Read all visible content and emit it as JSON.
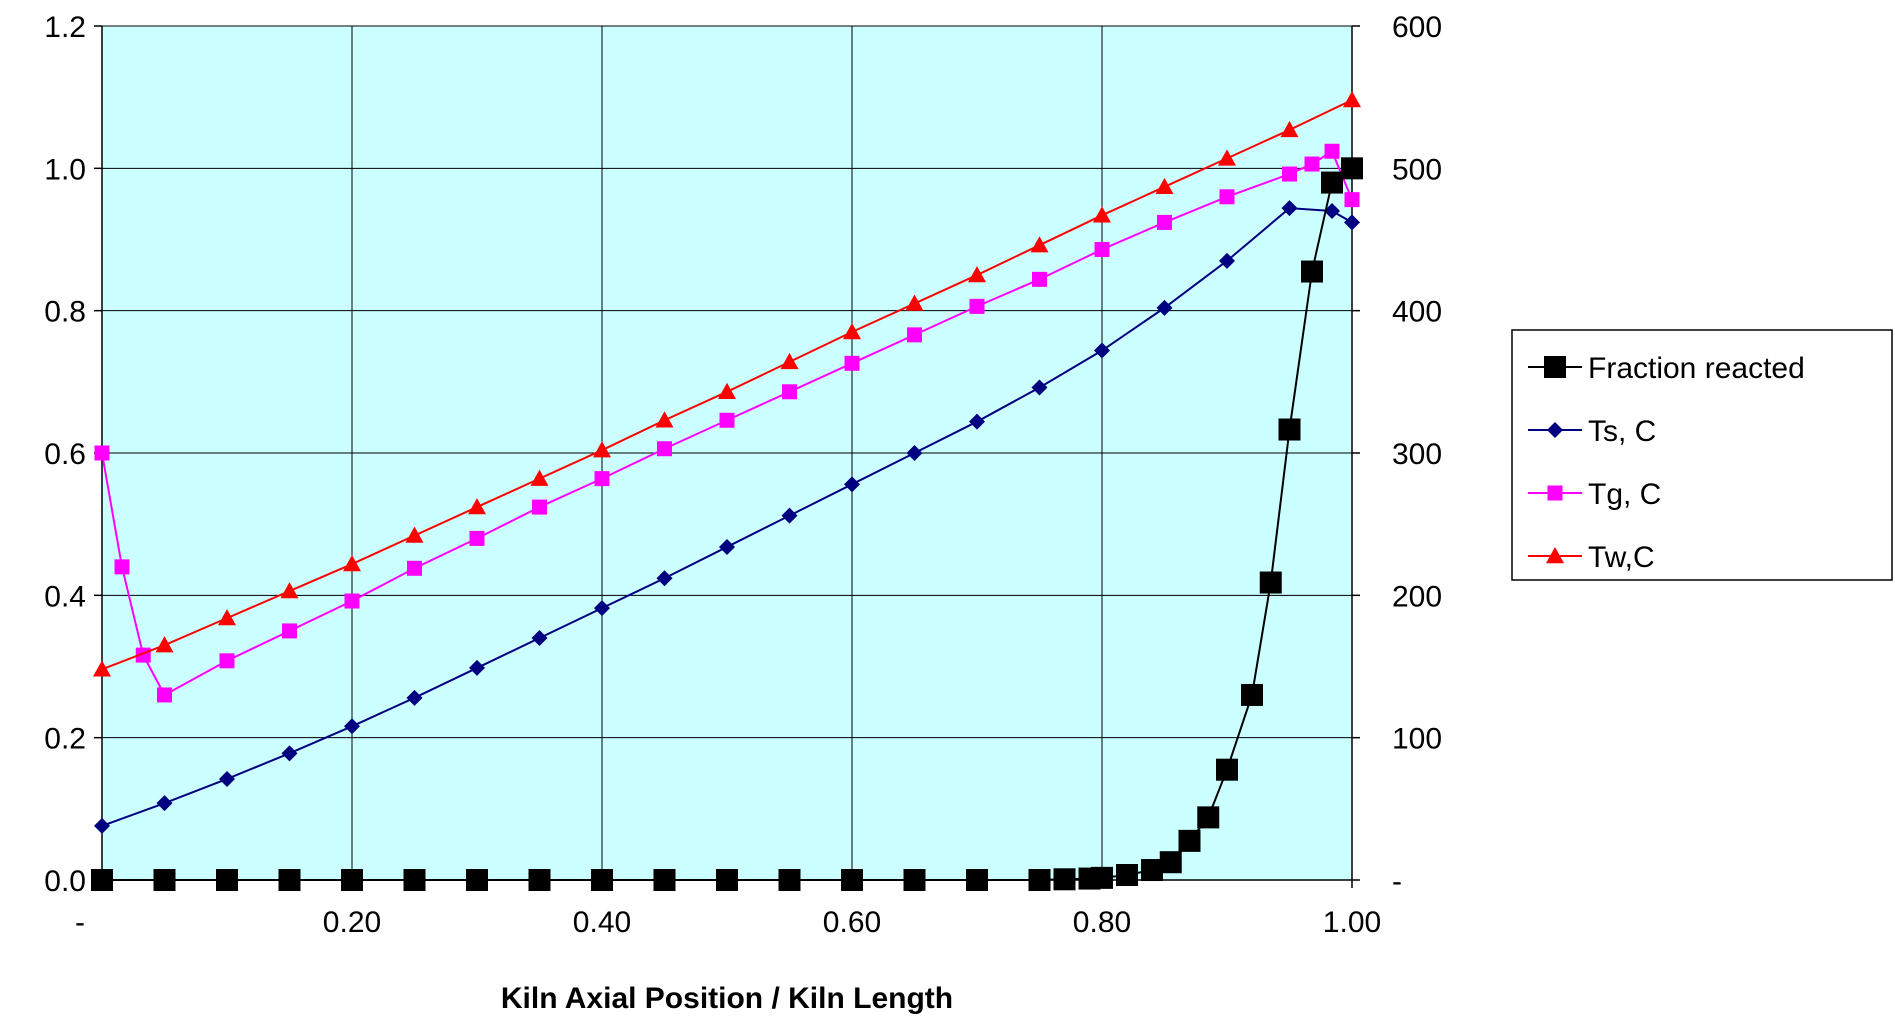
{
  "chart_data": {
    "type": "line",
    "xlabel": "Kiln Axial Position / Kiln Length",
    "x_tick_labels": [
      "-",
      "0.20",
      "0.40",
      "0.60",
      "0.80",
      "1.00"
    ],
    "x_tick_values": [
      0,
      0.2,
      0.4,
      0.6,
      0.8,
      1.0
    ],
    "xlim": [
      0,
      1.0
    ],
    "y_left_tick_labels": [
      "0.0",
      "0.2",
      "0.4",
      "0.6",
      "0.8",
      "1.0",
      "1.2"
    ],
    "y_left_tick_values": [
      0,
      0.2,
      0.4,
      0.6,
      0.8,
      1.0,
      1.2
    ],
    "ylim_left": [
      0,
      1.2
    ],
    "y_right_tick_labels": [
      "-",
      "100",
      "200",
      "300",
      "400",
      "500",
      "600"
    ],
    "y_right_tick_values": [
      0,
      100,
      200,
      300,
      400,
      500,
      600
    ],
    "ylim_right": [
      0,
      600
    ],
    "grid": true,
    "plot_background": "#ccffff",
    "legend_position": "right",
    "series": [
      {
        "name": "Fraction reacted",
        "axis": "left",
        "color": "#000000",
        "marker": "square",
        "x": [
          0,
          0.05,
          0.1,
          0.15,
          0.2,
          0.25,
          0.3,
          0.35,
          0.4,
          0.45,
          0.5,
          0.55,
          0.6,
          0.65,
          0.7,
          0.75,
          0.77,
          0.79,
          0.8,
          0.82,
          0.84,
          0.855,
          0.87,
          0.885,
          0.9,
          0.92,
          0.935,
          0.95,
          0.968,
          0.984,
          1.0
        ],
        "y": [
          0,
          0,
          0,
          0,
          0,
          0,
          0,
          0,
          0,
          0,
          0,
          0,
          0,
          0,
          0,
          0,
          0.001,
          0.002,
          0.003,
          0.007,
          0.014,
          0.025,
          0.055,
          0.088,
          0.155,
          0.26,
          0.418,
          0.633,
          0.855,
          0.98,
          1.0
        ]
      },
      {
        "name": "Ts, C",
        "axis": "right",
        "color": "#000080",
        "marker": "diamond",
        "x": [
          0,
          0.05,
          0.1,
          0.15,
          0.2,
          0.25,
          0.3,
          0.35,
          0.4,
          0.45,
          0.5,
          0.55,
          0.6,
          0.65,
          0.7,
          0.75,
          0.8,
          0.85,
          0.9,
          0.95,
          0.984,
          1.0
        ],
        "y": [
          38,
          54,
          71,
          89,
          108,
          128,
          149,
          170,
          191,
          212,
          234,
          256,
          278,
          300,
          322,
          346,
          372,
          402,
          435,
          472,
          470,
          462
        ]
      },
      {
        "name": "Tg, C",
        "axis": "right",
        "color": "#ff00ff",
        "marker": "square",
        "x": [
          0,
          0.016,
          0.033,
          0.05,
          0.1,
          0.15,
          0.2,
          0.25,
          0.3,
          0.35,
          0.4,
          0.45,
          0.5,
          0.55,
          0.6,
          0.65,
          0.7,
          0.75,
          0.8,
          0.85,
          0.9,
          0.95,
          0.968,
          0.984,
          1.0
        ],
        "y": [
          300,
          220,
          158,
          130,
          154,
          175,
          196,
          219,
          240,
          262,
          282,
          303,
          323,
          343,
          363,
          383,
          403,
          422,
          443,
          462,
          480,
          496,
          503,
          512,
          478
        ]
      },
      {
        "name": "Tw,C",
        "axis": "right",
        "color": "#ff0000",
        "marker": "triangle",
        "x": [
          0,
          0.05,
          0.1,
          0.15,
          0.2,
          0.25,
          0.3,
          0.35,
          0.4,
          0.45,
          0.5,
          0.55,
          0.6,
          0.65,
          0.7,
          0.75,
          0.8,
          0.85,
          0.9,
          0.95,
          1.0
        ],
        "y": [
          148,
          165,
          184,
          203,
          222,
          242,
          262,
          282,
          302,
          323,
          343,
          364,
          385,
          405,
          425,
          446,
          467,
          487,
          507,
          527,
          548
        ]
      }
    ]
  }
}
